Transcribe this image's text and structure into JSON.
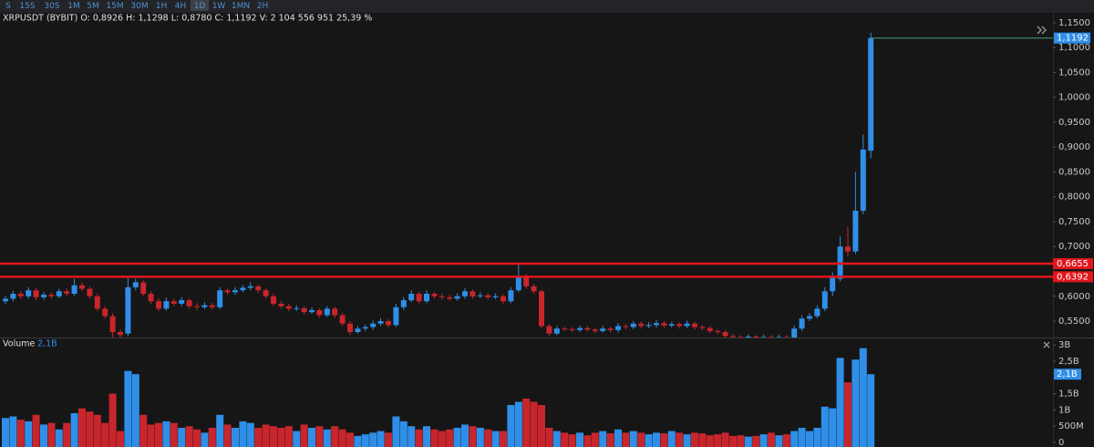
{
  "toolbar": {
    "timeframes": [
      "S",
      "15S",
      "30S",
      "1M",
      "5M",
      "15M",
      "30M",
      "1H",
      "4H",
      "1D",
      "1W",
      "1MN",
      "2H"
    ],
    "active": "1D"
  },
  "chart_data": [
    {
      "type": "candlestick",
      "info": "XRPUSDT (BYBIT) O: 0,8926  H: 1,1298  L: 0,8780  C: 1,1192  V: 2 104 556 951  25,39 %",
      "up_color": "#2f8fe8",
      "down_color": "#c8262c",
      "open": [
        0.59,
        0.595,
        0.605,
        0.6,
        0.612,
        0.598,
        0.603,
        0.6,
        0.61,
        0.605,
        0.622,
        0.615,
        0.6,
        0.575,
        0.56,
        0.528,
        0.525,
        0.618,
        0.628,
        0.605,
        0.59,
        0.575,
        0.59,
        0.585,
        0.592,
        0.58,
        0.578,
        0.582,
        0.578,
        0.612,
        0.608,
        0.612,
        0.617,
        0.62,
        0.612,
        0.6,
        0.585,
        0.58,
        0.575,
        0.576,
        0.568,
        0.572,
        0.562,
        0.575,
        0.562,
        0.545,
        0.528,
        0.535,
        0.538,
        0.545,
        0.55,
        0.542,
        0.578,
        0.592,
        0.605,
        0.59,
        0.605,
        0.6,
        0.598,
        0.595,
        0.6,
        0.61,
        0.6,
        0.602,
        0.598,
        0.6,
        0.59,
        0.612,
        0.64,
        0.62,
        0.61,
        0.54,
        0.525,
        0.535,
        0.534,
        0.532,
        0.536,
        0.533,
        0.53,
        0.535,
        0.532,
        0.54,
        0.538,
        0.545,
        0.54,
        0.542,
        0.546,
        0.541,
        0.544,
        0.54,
        0.545,
        0.538,
        0.536,
        0.53,
        0.528,
        0.52,
        0.518,
        0.516,
        0.519,
        0.517,
        0.518,
        0.515,
        0.518,
        0.516,
        0.535,
        0.555,
        0.56,
        0.575,
        0.61,
        0.635,
        0.7,
        0.69,
        0.772,
        0.8926
      ],
      "high": [
        0.601,
        0.611,
        0.61,
        0.618,
        0.617,
        0.609,
        0.608,
        0.615,
        0.616,
        0.635,
        0.628,
        0.62,
        0.606,
        0.58,
        0.566,
        0.533,
        0.64,
        0.635,
        0.632,
        0.61,
        0.596,
        0.597,
        0.595,
        0.598,
        0.596,
        0.586,
        0.588,
        0.587,
        0.618,
        0.616,
        0.618,
        0.623,
        0.628,
        0.624,
        0.616,
        0.605,
        0.59,
        0.585,
        0.582,
        0.58,
        0.578,
        0.576,
        0.58,
        0.579,
        0.567,
        0.55,
        0.541,
        0.543,
        0.551,
        0.556,
        0.554,
        0.585,
        0.598,
        0.612,
        0.609,
        0.612,
        0.609,
        0.605,
        0.603,
        0.606,
        0.616,
        0.614,
        0.608,
        0.606,
        0.606,
        0.604,
        0.618,
        0.665,
        0.645,
        0.625,
        0.614,
        0.544,
        0.54,
        0.539,
        0.538,
        0.541,
        0.54,
        0.537,
        0.541,
        0.539,
        0.546,
        0.544,
        0.55,
        0.549,
        0.548,
        0.552,
        0.55,
        0.549,
        0.548,
        0.551,
        0.549,
        0.542,
        0.54,
        0.534,
        0.532,
        0.524,
        0.522,
        0.524,
        0.522,
        0.523,
        0.522,
        0.523,
        0.522,
        0.541,
        0.562,
        0.566,
        0.582,
        0.618,
        0.648,
        0.72,
        0.74,
        0.85,
        0.925,
        1.1298
      ],
      "low": [
        0.585,
        0.59,
        0.594,
        0.595,
        0.592,
        0.593,
        0.595,
        0.596,
        0.6,
        0.6,
        0.61,
        0.595,
        0.57,
        0.555,
        0.51,
        0.515,
        0.52,
        0.612,
        0.6,
        0.585,
        0.57,
        0.571,
        0.58,
        0.58,
        0.575,
        0.572,
        0.574,
        0.573,
        0.574,
        0.603,
        0.603,
        0.608,
        0.612,
        0.607,
        0.595,
        0.58,
        0.575,
        0.57,
        0.57,
        0.563,
        0.565,
        0.557,
        0.558,
        0.557,
        0.54,
        0.522,
        0.525,
        0.53,
        0.532,
        0.54,
        0.537,
        0.538,
        0.572,
        0.588,
        0.585,
        0.586,
        0.595,
        0.593,
        0.59,
        0.591,
        0.595,
        0.595,
        0.596,
        0.593,
        0.594,
        0.585,
        0.586,
        0.608,
        0.615,
        0.605,
        0.535,
        0.52,
        0.522,
        0.53,
        0.528,
        0.528,
        0.529,
        0.526,
        0.527,
        0.528,
        0.527,
        0.533,
        0.534,
        0.535,
        0.536,
        0.537,
        0.536,
        0.537,
        0.535,
        0.536,
        0.533,
        0.531,
        0.526,
        0.523,
        0.515,
        0.513,
        0.511,
        0.512,
        0.512,
        0.513,
        0.51,
        0.511,
        0.512,
        0.512,
        0.53,
        0.55,
        0.556,
        0.57,
        0.6,
        0.63,
        0.68,
        0.685,
        0.765,
        0.878
      ],
      "close": [
        0.595,
        0.605,
        0.6,
        0.612,
        0.598,
        0.603,
        0.6,
        0.61,
        0.605,
        0.622,
        0.615,
        0.6,
        0.575,
        0.56,
        0.528,
        0.522,
        0.618,
        0.628,
        0.605,
        0.59,
        0.575,
        0.59,
        0.585,
        0.592,
        0.58,
        0.578,
        0.582,
        0.578,
        0.612,
        0.608,
        0.612,
        0.617,
        0.62,
        0.612,
        0.6,
        0.585,
        0.58,
        0.575,
        0.576,
        0.568,
        0.572,
        0.562,
        0.575,
        0.562,
        0.545,
        0.528,
        0.535,
        0.538,
        0.545,
        0.55,
        0.542,
        0.578,
        0.592,
        0.605,
        0.59,
        0.605,
        0.6,
        0.598,
        0.595,
        0.6,
        0.61,
        0.6,
        0.602,
        0.598,
        0.6,
        0.59,
        0.612,
        0.64,
        0.62,
        0.61,
        0.54,
        0.525,
        0.535,
        0.534,
        0.532,
        0.536,
        0.533,
        0.53,
        0.535,
        0.532,
        0.54,
        0.538,
        0.545,
        0.54,
        0.542,
        0.546,
        0.541,
        0.544,
        0.54,
        0.545,
        0.538,
        0.536,
        0.53,
        0.528,
        0.52,
        0.518,
        0.516,
        0.519,
        0.517,
        0.518,
        0.515,
        0.518,
        0.516,
        0.535,
        0.555,
        0.56,
        0.575,
        0.61,
        0.64,
        0.7,
        0.69,
        0.772,
        0.895,
        1.1192
      ],
      "ylim": [
        0.517,
        1.17
      ],
      "yticks": [
        {
          "value": 1.15,
          "label": "1,1500"
        },
        {
          "value": 1.1,
          "label": "1,1000"
        },
        {
          "value": 1.05,
          "label": "1,0500"
        },
        {
          "value": 1.0,
          "label": "1,0000"
        },
        {
          "value": 0.95,
          "label": "0,9500"
        },
        {
          "value": 0.9,
          "label": "0,9000"
        },
        {
          "value": 0.85,
          "label": "0,8500"
        },
        {
          "value": 0.8,
          "label": "0,8000"
        },
        {
          "value": 0.75,
          "label": "0,7500"
        },
        {
          "value": 0.7,
          "label": "0,7000"
        },
        {
          "value": 0.6,
          "label": "0,6000"
        },
        {
          "value": 0.55,
          "label": "0,5500"
        }
      ],
      "levels": [
        {
          "value": 0.6655,
          "label": "0,6655"
        },
        {
          "value": 0.6392,
          "label": "0,6392"
        }
      ],
      "level_color": "#e0161c",
      "last_price": {
        "value": 1.1192,
        "label": "1,1192"
      },
      "last_color": "#3aa07a"
    },
    {
      "type": "bar",
      "title": "Volume",
      "current": {
        "value": 2.1,
        "label": "2,1B"
      },
      "values": [
        0.75,
        0.8,
        0.7,
        0.65,
        0.85,
        0.55,
        0.6,
        0.4,
        0.6,
        0.9,
        1.05,
        0.95,
        0.85,
        0.6,
        1.5,
        0.35,
        2.2,
        2.1,
        0.85,
        0.55,
        0.6,
        0.65,
        0.6,
        0.45,
        0.5,
        0.4,
        0.3,
        0.45,
        0.85,
        0.55,
        0.45,
        0.65,
        0.6,
        0.45,
        0.55,
        0.5,
        0.45,
        0.5,
        0.35,
        0.55,
        0.45,
        0.5,
        0.4,
        0.5,
        0.4,
        0.3,
        0.2,
        0.25,
        0.3,
        0.35,
        0.3,
        0.8,
        0.65,
        0.5,
        0.4,
        0.5,
        0.4,
        0.35,
        0.4,
        0.45,
        0.55,
        0.5,
        0.45,
        0.4,
        0.35,
        0.35,
        1.15,
        1.25,
        1.35,
        1.25,
        1.15,
        0.45,
        0.35,
        0.3,
        0.25,
        0.3,
        0.22,
        0.3,
        0.35,
        0.28,
        0.4,
        0.3,
        0.35,
        0.3,
        0.25,
        0.3,
        0.28,
        0.35,
        0.3,
        0.25,
        0.3,
        0.28,
        0.22,
        0.25,
        0.3,
        0.2,
        0.22,
        0.18,
        0.2,
        0.25,
        0.3,
        0.22,
        0.25,
        0.35,
        0.45,
        0.35,
        0.45,
        1.1,
        1.05,
        2.6,
        1.85,
        2.55,
        2.9,
        2.1
      ],
      "ylim": [
        0,
        3.2
      ],
      "yticks": [
        {
          "value": 3,
          "label": "3B"
        },
        {
          "value": 2.5,
          "label": "2,5B"
        },
        {
          "value": 1.5,
          "label": "1,5B"
        },
        {
          "value": 1,
          "label": "1B"
        },
        {
          "value": 0.5,
          "label": "500M"
        },
        0
      ]
    }
  ]
}
